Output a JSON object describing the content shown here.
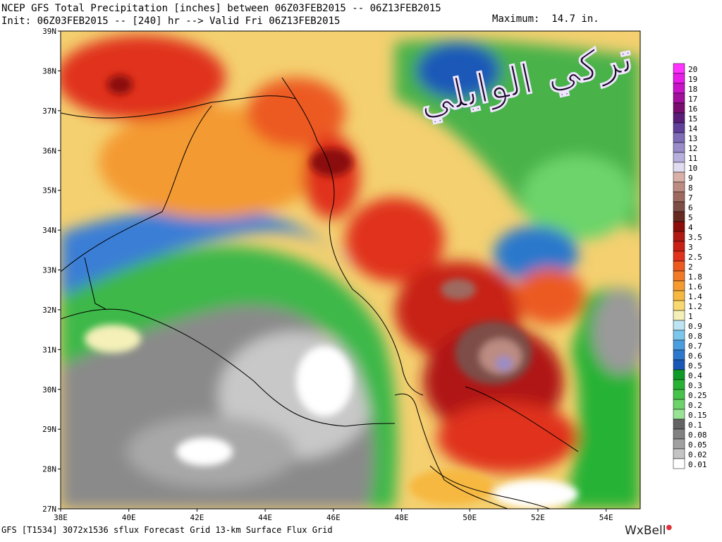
{
  "header": {
    "title": "NCEP GFS Total Precipitation [inches] between 06Z03FEB2015 -- 06Z13FEB2015",
    "init_line": "Init: 06Z03FEB2015 -- [240] hr --> Valid Fri 06Z13FEB2015",
    "maximum_label": "Maximum:  14.7 in."
  },
  "footer": {
    "model_info": "GFS [T1534] 3072x1536 sflux Forecast Grid 13-km Surface Flux Grid",
    "brand": "WxBell"
  },
  "watermark": {
    "text": "تركي الوايلي"
  },
  "map": {
    "lat_labels": [
      "39N",
      "38N",
      "37N",
      "36N",
      "35N",
      "34N",
      "33N",
      "32N",
      "31N",
      "30N",
      "29N",
      "28N",
      "27N"
    ],
    "lon_labels": [
      "38E",
      "40E",
      "42E",
      "44E",
      "46E",
      "48E",
      "50E",
      "52E",
      "54E"
    ],
    "lat_range": [
      27,
      39
    ],
    "lon_range": [
      38,
      55
    ]
  },
  "colorbar": {
    "labels": [
      "20",
      "19",
      "18",
      "17",
      "16",
      "15",
      "14",
      "13",
      "12",
      "11",
      "10",
      "9",
      "8",
      "7",
      "6",
      "5",
      "4",
      "3.5",
      "3",
      "2.5",
      "2",
      "1.8",
      "1.6",
      "1.4",
      "1.2",
      "1",
      "0.9",
      "0.8",
      "0.7",
      "0.6",
      "0.5",
      "0.4",
      "0.3",
      "0.25",
      "0.2",
      "0.15",
      "0.1",
      "0.08",
      "0.05",
      "0.02",
      "0.01"
    ],
    "colors": [
      "#ff33ff",
      "#e81ee8",
      "#c814c8",
      "#a0109a",
      "#7a0e6e",
      "#5a1e78",
      "#60409a",
      "#7e6cb6",
      "#9a8cc8",
      "#b8b0dc",
      "#e2dcf0",
      "#d8b0a8",
      "#bc8c82",
      "#9e6a60",
      "#7e4e46",
      "#662a20",
      "#8c0e0a",
      "#b01812",
      "#c82014",
      "#e0321c",
      "#ec5a20",
      "#f07a26",
      "#f49a30",
      "#f6b840",
      "#f8d870",
      "#f4f0b8",
      "#bce4f2",
      "#7cc6ec",
      "#4a9ee0",
      "#2c78cc",
      "#1a58b8",
      "#109a28",
      "#28b234",
      "#46c44a",
      "#6cd46a",
      "#98e494",
      "#646464",
      "#828282",
      "#a0a0a0",
      "#c4c4c4",
      "#ffffff"
    ]
  }
}
